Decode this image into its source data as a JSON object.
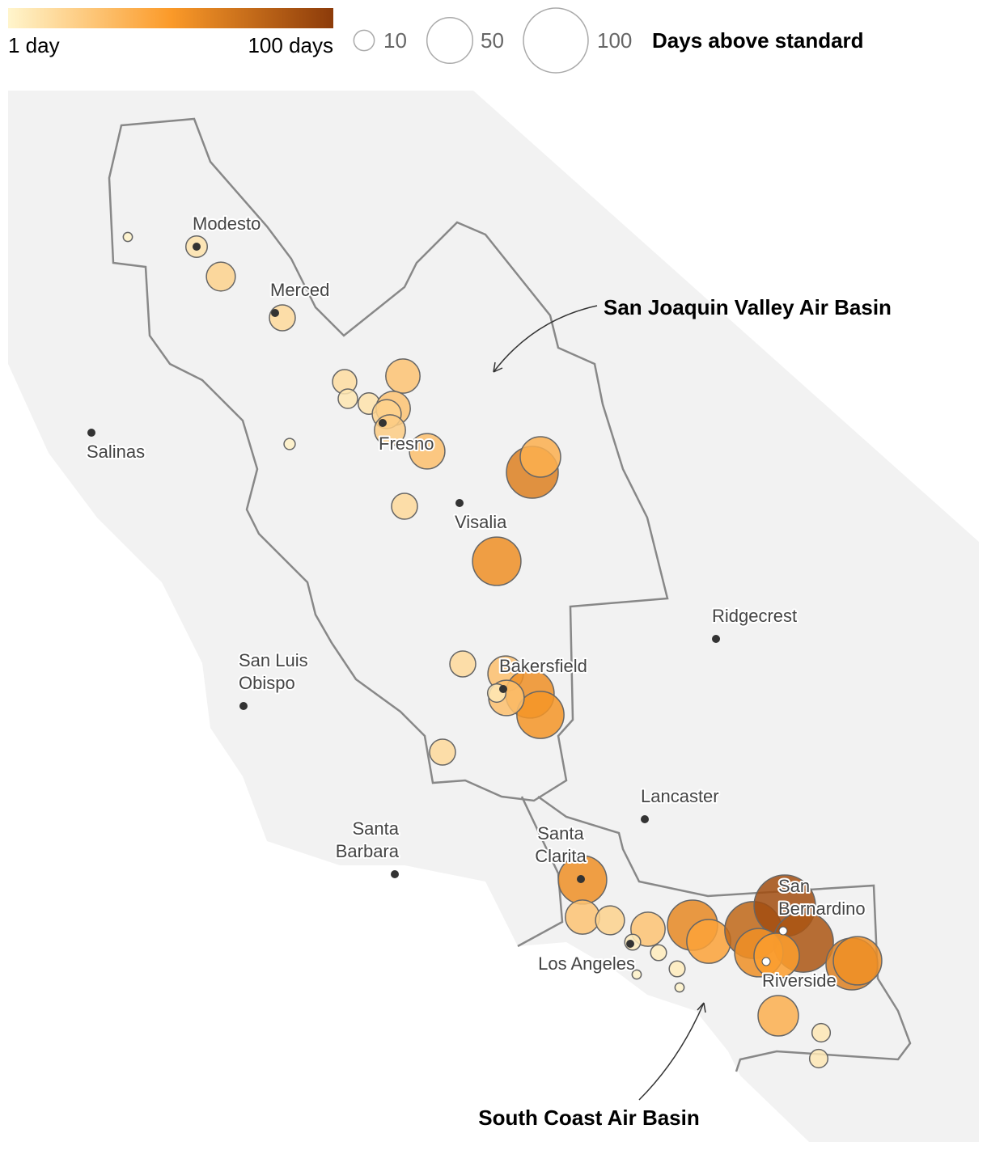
{
  "legend": {
    "title": "Days above standard",
    "color_ticks": [
      {
        "value": 1,
        "label": "1 day"
      },
      {
        "value": 100,
        "label": "100 days"
      }
    ],
    "colors": [
      "#fff5cc",
      "#fb9a29",
      "#8c3b0a"
    ],
    "size_values": [
      10,
      50,
      100
    ]
  },
  "stations": {
    "values": [
      2,
      11,
      20,
      16,
      14,
      28,
      9,
      11,
      28,
      20,
      23,
      3,
      30,
      64,
      39,
      16,
      56,
      16,
      30,
      56,
      53,
      30,
      8,
      16,
      56,
      28,
      20,
      28,
      6,
      6,
      2,
      6,
      2,
      60,
      46,
      77,
      90,
      86,
      56,
      49,
      64,
      56,
      39,
      8,
      8
    ]
  },
  "cities": [
    {
      "name": [
        "Modesto"
      ]
    },
    {
      "name": [
        "Merced"
      ]
    },
    {
      "name": [
        "Salinas"
      ]
    },
    {
      "name": [
        "Fresno"
      ]
    },
    {
      "name": [
        "Visalia"
      ]
    },
    {
      "name": [
        "Ridgecrest"
      ]
    },
    {
      "name": [
        "San Luis",
        "Obispo"
      ]
    },
    {
      "name": [
        "Bakersfield"
      ]
    },
    {
      "name": [
        "Lancaster"
      ]
    },
    {
      "name": [
        "Santa",
        "Barbara"
      ]
    },
    {
      "name": [
        "Santa",
        "Clarita"
      ]
    },
    {
      "name": [
        "Los Angeles"
      ]
    },
    {
      "name": [
        "San",
        "Bernardino"
      ]
    },
    {
      "name": [
        "Riverside"
      ]
    }
  ],
  "annotations": [
    "San Joaquin Valley Air Basin",
    "South Coast Air Basin"
  ]
}
